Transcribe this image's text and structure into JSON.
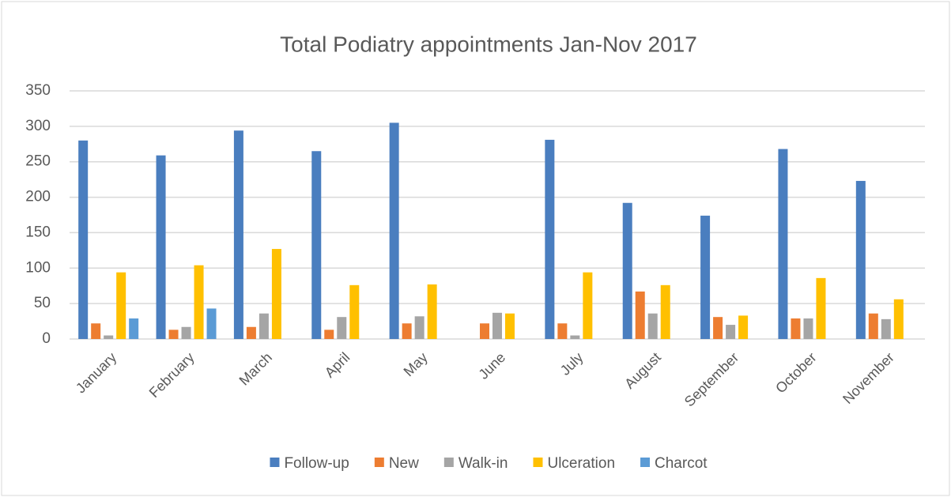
{
  "chart_data": {
    "type": "bar",
    "title": "Total Podiatry appointments Jan-Nov 2017",
    "categories": [
      "January",
      "February",
      "March",
      "April",
      "May",
      "June",
      "July",
      "August",
      "September",
      "October",
      "November"
    ],
    "series": [
      {
        "name": "Follow-up",
        "color": "#4a7ebf",
        "values": [
          280,
          259,
          294,
          265,
          305,
          0,
          281,
          192,
          174,
          268,
          223
        ]
      },
      {
        "name": "New",
        "color": "#ed7d31",
        "values": [
          22,
          13,
          17,
          13,
          22,
          22,
          22,
          67,
          31,
          29,
          36
        ]
      },
      {
        "name": "Walk-in",
        "color": "#a5a5a5",
        "values": [
          5,
          17,
          36,
          31,
          32,
          37,
          5,
          36,
          20,
          29,
          28
        ]
      },
      {
        "name": "Ulceration",
        "color": "#ffc000",
        "values": [
          94,
          104,
          127,
          76,
          77,
          36,
          94,
          76,
          33,
          86,
          56
        ]
      },
      {
        "name": "Charcot",
        "color": "#5b9bd5",
        "values": [
          29,
          43,
          0,
          0,
          0,
          0,
          0,
          0,
          0,
          0,
          0
        ]
      }
    ],
    "ylim": [
      0,
      350
    ],
    "yticks": [
      0,
      50,
      100,
      150,
      200,
      250,
      300,
      350
    ],
    "grid": true,
    "legend": "bottom"
  }
}
